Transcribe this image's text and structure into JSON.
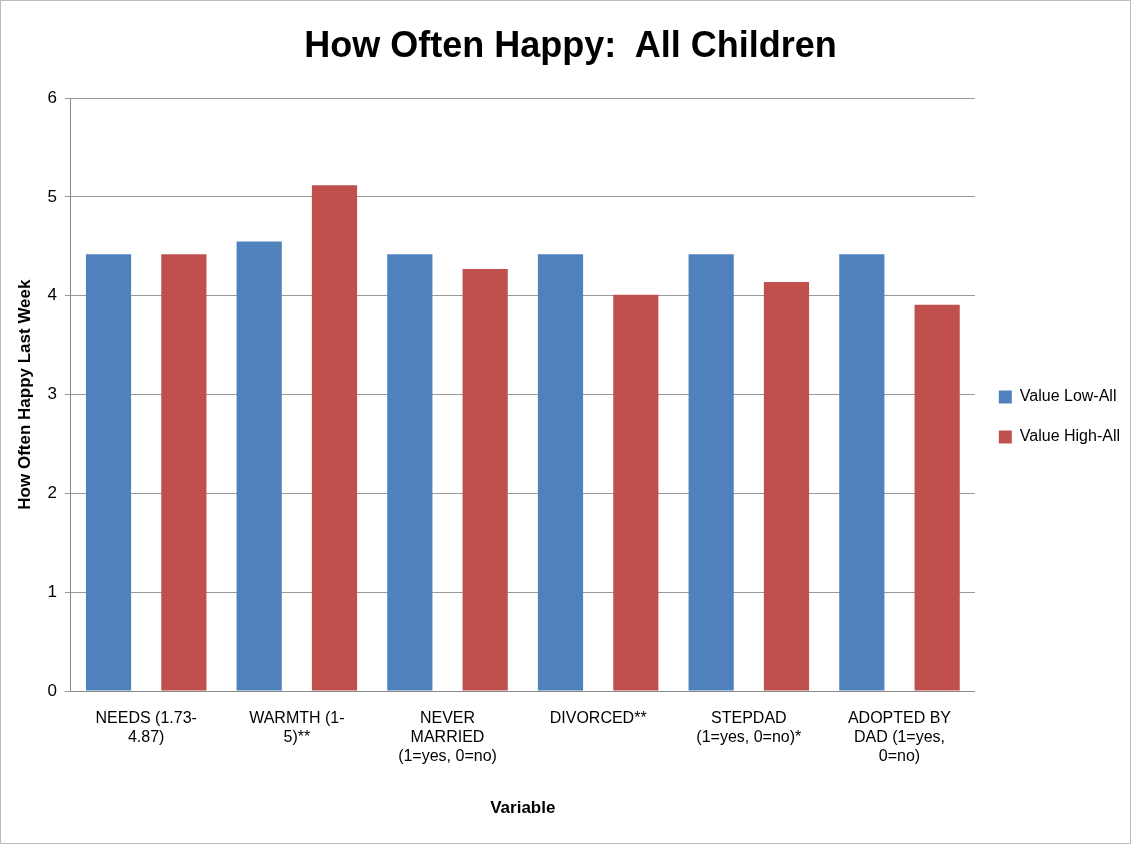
{
  "chart_data": {
    "type": "bar",
    "title": "How Often Happy:  All Children",
    "xlabel": "Variable",
    "ylabel": "How Often Happy Last Week",
    "categories": [
      "NEEDS (1.73-4.87)",
      "WARMTH (1-5)**",
      "NEVER MARRIED (1=yes, 0=no)",
      "DIVORCED**",
      "STEPDAD (1=yes, 0=no)*",
      "ADOPTED BY DAD (1=yes, 0=no)"
    ],
    "series": [
      {
        "name": "Value Low-All",
        "color": "#4f81bd",
        "values": [
          4.42,
          4.55,
          4.42,
          4.42,
          4.42,
          4.42
        ]
      },
      {
        "name": "Value High-All",
        "color": "#c0504d",
        "values": [
          4.42,
          5.12,
          4.27,
          4.01,
          4.14,
          3.91
        ]
      }
    ],
    "ylim": [
      0,
      6
    ],
    "yticks": [
      0,
      1,
      2,
      3,
      4,
      5,
      6
    ],
    "grid": "y",
    "legend": "right"
  }
}
